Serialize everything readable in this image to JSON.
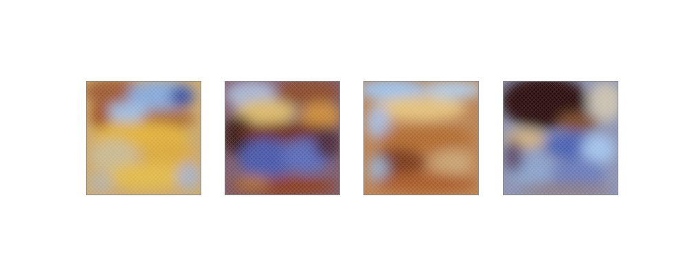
{
  "figure": {
    "images": [
      {
        "palette": [
          "#b58f5a",
          "#7aa3d8",
          "#e0b03a",
          "#3e4f9e",
          "#9c4d1f",
          "#c9b8a0"
        ]
      },
      {
        "palette": [
          "#8a4a2a",
          "#4a58a8",
          "#d9b86a",
          "#3a1a14",
          "#a8b4d0",
          "#c98a3a"
        ]
      },
      {
        "palette": [
          "#b06a2e",
          "#9cc0e8",
          "#e2c07a",
          "#5e2a1a",
          "#c8a070",
          "#7a3a1e"
        ]
      },
      {
        "palette": [
          "#8aa0c8",
          "#2a0a0a",
          "#4a60b0",
          "#d0b080",
          "#a0c0e8",
          "#7a4a2a"
        ]
      }
    ]
  }
}
